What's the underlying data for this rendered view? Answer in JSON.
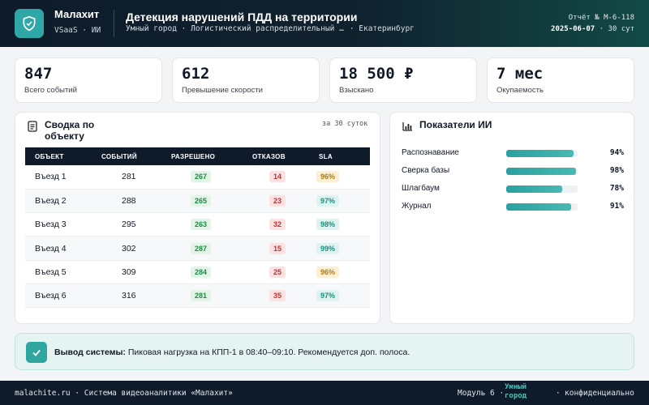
{
  "header": {
    "brand": "Малахит",
    "brand_sub": "VSaaS · ИИ",
    "title": "Детекция нарушений ПДД на территории",
    "crumb_1": "Умный город",
    "crumb_2": "Логистический распределительный центр",
    "crumb_3": "Екатеринбург",
    "report_label": "Отчёт № М-6-118",
    "report_date": "2025-06-07",
    "report_period": "· 30 сут"
  },
  "kpis": [
    {
      "value": "847",
      "label": "Всего событий"
    },
    {
      "value": "612",
      "label": "Превышение скорости"
    },
    {
      "value": "18 500 ₽",
      "label": "Взыскано"
    },
    {
      "value": "7 мес",
      "label": "Окупаемость"
    }
  ],
  "summary": {
    "title": "Сводка по объекту",
    "period": "за 30 суток",
    "columns": [
      "ОБЪЕКТ",
      "СОБЫТИЙ",
      "РАЗРЕШЕНО",
      "ОТКАЗОВ",
      "SLA"
    ],
    "rows": [
      {
        "object": "Въезд 1",
        "events": "281",
        "allowed": "267",
        "denied": "14",
        "sla": "96%",
        "sla_color": "gold"
      },
      {
        "object": "Въезд 2",
        "events": "288",
        "allowed": "265",
        "denied": "23",
        "sla": "97%",
        "sla_color": "teal"
      },
      {
        "object": "Въезд 3",
        "events": "295",
        "allowed": "263",
        "denied": "32",
        "sla": "98%",
        "sla_color": "teal"
      },
      {
        "object": "Въезд 4",
        "events": "302",
        "allowed": "287",
        "denied": "15",
        "sla": "99%",
        "sla_color": "teal"
      },
      {
        "object": "Въезд 5",
        "events": "309",
        "allowed": "284",
        "denied": "25",
        "sla": "96%",
        "sla_color": "gold"
      },
      {
        "object": "Въезд 6",
        "events": "316",
        "allowed": "281",
        "denied": "35",
        "sla": "97%",
        "sla_color": "teal"
      }
    ]
  },
  "ai": {
    "title": "Показатели ИИ",
    "metrics": [
      {
        "name": "Распознавание",
        "value": "94%",
        "level": 0.94
      },
      {
        "name": "Сверка базы",
        "value": "98%",
        "level": 0.98
      },
      {
        "name": "Шлагбаум",
        "value": "78%",
        "level": 0.78
      },
      {
        "name": "Журнал",
        "value": "91%",
        "level": 0.91
      }
    ]
  },
  "conclusion": {
    "label": "Вывод системы:",
    "text": "Пиковая нагрузка на КПП-1 в 08:40–09:10. Рекомендуется доп. полоса."
  },
  "footer": {
    "left": "malachite.ru · Система видеоаналитики «Малахит»",
    "module": "Модуль 6 ·",
    "city": "Умный город",
    "confidential": "конфиденциально"
  },
  "colors": {
    "accent": "#2fa7a7",
    "dark": "#0f1b2a"
  }
}
